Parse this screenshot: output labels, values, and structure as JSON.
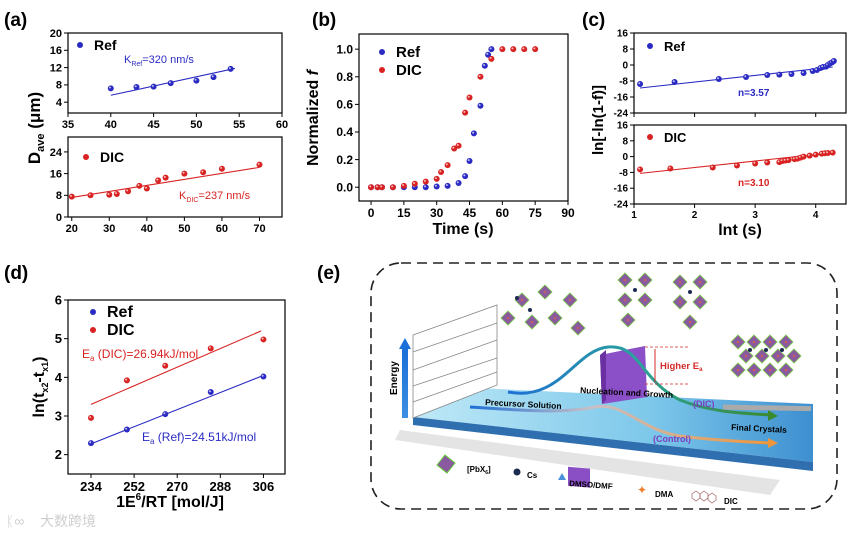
{
  "panel_labels": {
    "a": "(a)",
    "b": "(b)",
    "c": "(c)",
    "d": "(d)",
    "e": "(e)"
  },
  "colors": {
    "ref": "#2b2bc4",
    "dic": "#d92222",
    "purple": "#7a3fc0",
    "e_red": "#d42a2a"
  },
  "axis_titles": {
    "a_y_main": "D",
    "a_y_sub": "ave",
    "a_y_unit": " (μm)",
    "b_y": "Normalized ",
    "b_y_italic": "f",
    "b_x": "Time (s)",
    "c_y": "ln[-ln(1-f)]",
    "c_x": "lnt (s)",
    "d_y_main": "ln(t",
    "d_y_sub1": "x2",
    "d_y_mid": "-t",
    "d_y_sub2": "x1",
    "d_y_end": ")",
    "d_x_main": "1E",
    "d_x_sup": "6",
    "d_x_end": "/RT [mol/J]"
  },
  "annotations": {
    "a_ref_k": "K",
    "a_ref_k_sub": "Ref",
    "a_ref_k_val": "=320 nm/s",
    "a_dic_k": "K",
    "a_dic_k_sub": "DIC",
    "a_dic_k_val": "=237 nm/s",
    "c_ref_n": "n=3.57",
    "c_dic_n": "n=3.10",
    "d_dic_ea": "E",
    "d_dic_ea_sub": "a",
    "d_dic_ea_val": " (DIC)=26.94kJ/mol",
    "d_ref_ea": "E",
    "d_ref_ea_sub": "a",
    "d_ref_ea_val": " (Ref)=24.51kJ/mol"
  },
  "legend": {
    "ref": "Ref",
    "dic": "DIC"
  },
  "chart_data": [
    {
      "id": "a-ref",
      "type": "scatter",
      "xlim": [
        35,
        60
      ],
      "ylim": [
        1.5,
        20
      ],
      "xticks": [
        35,
        40,
        45,
        50,
        55,
        60
      ],
      "yticks": [
        4,
        8,
        12,
        16,
        20
      ],
      "series": [
        {
          "name": "Ref",
          "color": "#2b2bc4",
          "x": [
            40,
            43,
            45,
            47,
            50,
            52,
            54
          ],
          "y": [
            7.2,
            7.5,
            7.6,
            8.4,
            9.0,
            9.8,
            11.7
          ],
          "fit": [
            [
              40,
              5.6
            ],
            [
              54.5,
              11.8
            ]
          ]
        }
      ]
    },
    {
      "id": "a-dic",
      "type": "scatter",
      "xlim": [
        19,
        76
      ],
      "ylim": [
        0,
        29.5
      ],
      "xticks": [
        20,
        30,
        40,
        50,
        60,
        70
      ],
      "yticks": [
        0,
        8,
        16,
        24
      ],
      "series": [
        {
          "name": "DIC",
          "color": "#d92222",
          "x": [
            20,
            25,
            30,
            32,
            35,
            38,
            40,
            43,
            45,
            50,
            55,
            60,
            70
          ],
          "y": [
            7.5,
            8.0,
            8.2,
            8.5,
            9.5,
            11.5,
            10.5,
            13.5,
            14.5,
            16.0,
            16.5,
            17.8,
            19.3
          ],
          "fit": [
            [
              20,
              7.2
            ],
            [
              70,
              18.3
            ]
          ]
        }
      ]
    },
    {
      "id": "b",
      "type": "scatter",
      "xlim": [
        -5.5,
        90
      ],
      "ylim": [
        -0.1,
        1.11
      ],
      "xticks": [
        0,
        15,
        30,
        45,
        60,
        75,
        90
      ],
      "yticks": [
        0.0,
        0.2,
        0.4,
        0.6,
        0.8,
        1.0
      ],
      "ytick_decimals": 1,
      "series": [
        {
          "name": "Ref",
          "color": "#2b2bc4",
          "x": [
            0,
            3,
            5,
            10,
            15,
            20,
            25,
            30,
            35,
            40,
            43,
            45,
            47,
            50,
            52,
            53.5,
            55
          ],
          "y": [
            0,
            0,
            0,
            0,
            0,
            0,
            0,
            0.005,
            0.01,
            0.03,
            0.08,
            0.19,
            0.39,
            0.59,
            0.88,
            0.96,
            1.0
          ]
        },
        {
          "name": "DIC",
          "color": "#d92222",
          "x": [
            0,
            3,
            5,
            10,
            15,
            20,
            25,
            30,
            32,
            35,
            38,
            40,
            43,
            45,
            50,
            55,
            60,
            65,
            70,
            75
          ],
          "y": [
            0,
            0,
            0,
            0,
            0.01,
            0.025,
            0.04,
            0.06,
            0.11,
            0.16,
            0.28,
            0.3,
            0.54,
            0.65,
            0.8,
            0.93,
            1,
            1,
            1,
            1
          ]
        }
      ]
    },
    {
      "id": "c-ref",
      "type": "scatter",
      "xlim": [
        1,
        4.5
      ],
      "ylim": [
        -24,
        16
      ],
      "xticks": [
        1,
        2,
        3,
        4
      ],
      "yticks": [
        -24,
        -16,
        -8,
        0,
        8,
        16
      ],
      "hide_xlabels": true,
      "series": [
        {
          "name": "Ref",
          "color": "#2b2bc4",
          "x": [
            1.1,
            1.67,
            2.4,
            2.85,
            3.2,
            3.4,
            3.6,
            3.8,
            3.95,
            4.02,
            4.08,
            4.12,
            4.17,
            4.2,
            4.24,
            4.27,
            4.3
          ],
          "y": [
            -9.5,
            -8.5,
            -7,
            -6,
            -5,
            -4.8,
            -4.5,
            -4,
            -3,
            -2.5,
            -1.5,
            -1,
            -0.8,
            0,
            0.8,
            1.3,
            2
          ],
          "fit": [
            [
              1.1,
              -11.5
            ],
            [
              4.28,
              -1
            ]
          ]
        }
      ]
    },
    {
      "id": "c-dic",
      "type": "scatter",
      "xlim": [
        1,
        4.5
      ],
      "ylim": [
        -24,
        16
      ],
      "xticks": [
        1,
        2,
        3,
        4
      ],
      "yticks": [
        -24,
        -16,
        -8,
        0,
        8,
        16
      ],
      "series": [
        {
          "name": "DIC",
          "color": "#d92222",
          "x": [
            1.1,
            1.6,
            2.3,
            2.7,
            3.0,
            3.2,
            3.4,
            3.45,
            3.5,
            3.55,
            3.65,
            3.7,
            3.75,
            3.8,
            3.9,
            4.0,
            4.1,
            4.15,
            4.2,
            4.28
          ],
          "y": [
            -6.5,
            -6,
            -5.5,
            -4.5,
            -3.5,
            -3,
            -2.8,
            -2.2,
            -2,
            -1.8,
            -1.3,
            -1,
            -0.5,
            0,
            0.5,
            1,
            1.5,
            1.7,
            1.8,
            2
          ],
          "fit": [
            [
              1.1,
              -8.5
            ],
            [
              4.28,
              2
            ]
          ]
        }
      ]
    },
    {
      "id": "d",
      "type": "scatter",
      "xlim": [
        224.4,
        315
      ],
      "ylim": [
        1.5,
        6
      ],
      "xticks": [
        234,
        252,
        270,
        288,
        306
      ],
      "yticks": [
        2,
        3,
        4,
        5,
        6
      ],
      "series": [
        {
          "name": "Ref",
          "color": "#2b2bc4",
          "x": [
            234,
            249,
            265,
            284,
            306
          ],
          "y": [
            2.3,
            2.65,
            3.05,
            3.62,
            4.02
          ],
          "fit": [
            [
              234,
              2.28
            ],
            [
              306,
              4.05
            ]
          ]
        },
        {
          "name": "DIC",
          "color": "#d92222",
          "x": [
            234,
            249,
            265,
            284,
            306
          ],
          "y": [
            2.95,
            3.92,
            4.3,
            4.75,
            4.98
          ],
          "fit": [
            [
              234,
              3.3
            ],
            [
              305,
              5.2
            ]
          ]
        }
      ]
    }
  ],
  "schematic": {
    "energy": "Energy",
    "precursor": "Precursor Solution",
    "nucleation": "Nucleation and Growth",
    "dic_path": "(DIC)",
    "control_path": "(Control)",
    "final": "Final Crystals",
    "higher": "Higher E",
    "higher_sub": "a",
    "legend_pbx": "[PbX",
    "legend_pbx_sub": "6",
    "legend_pbx_end": "]",
    "legend_cs": "Cs",
    "legend_dmso": "DMSO/DMF",
    "legend_dma": "DMA",
    "legend_dic": "DIC"
  },
  "watermark": "大数跨境"
}
